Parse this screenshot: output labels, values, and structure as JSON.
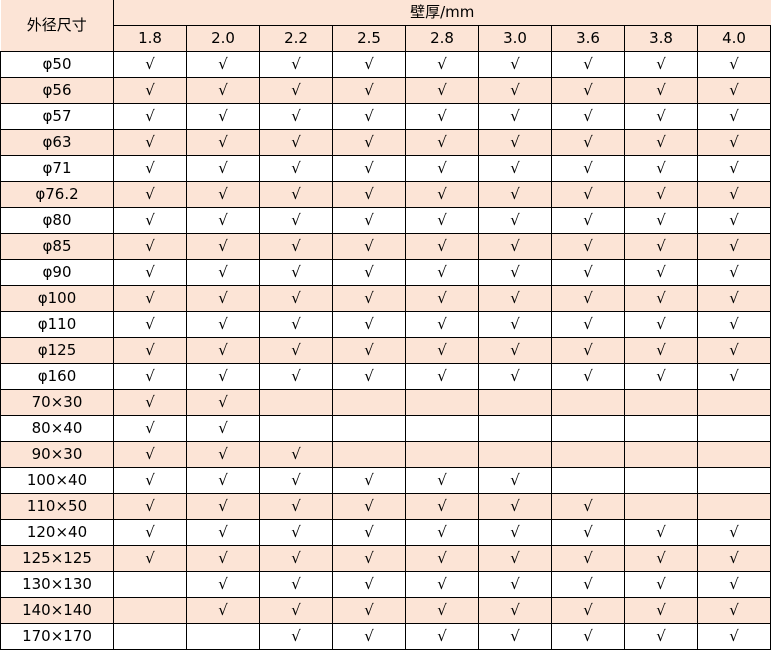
{
  "table": {
    "corner_header": "外径尺寸",
    "group_header": "壁厚/mm",
    "thickness_columns": [
      "1.8",
      "2.0",
      "2.2",
      "2.5",
      "2.8",
      "3.0",
      "3.6",
      "3.8",
      "4.0"
    ],
    "check_mark": "√",
    "row_color_alt": "#fce4d6",
    "rows": [
      {
        "size": "φ50",
        "checks": [
          1,
          1,
          1,
          1,
          1,
          1,
          1,
          1,
          1
        ]
      },
      {
        "size": "φ56",
        "checks": [
          1,
          1,
          1,
          1,
          1,
          1,
          1,
          1,
          1
        ]
      },
      {
        "size": "φ57",
        "checks": [
          1,
          1,
          1,
          1,
          1,
          1,
          1,
          1,
          1
        ]
      },
      {
        "size": "φ63",
        "checks": [
          1,
          1,
          1,
          1,
          1,
          1,
          1,
          1,
          1
        ]
      },
      {
        "size": "φ71",
        "checks": [
          1,
          1,
          1,
          1,
          1,
          1,
          1,
          1,
          1
        ]
      },
      {
        "size": "φ76.2",
        "checks": [
          1,
          1,
          1,
          1,
          1,
          1,
          1,
          1,
          1
        ]
      },
      {
        "size": "φ80",
        "checks": [
          1,
          1,
          1,
          1,
          1,
          1,
          1,
          1,
          1
        ]
      },
      {
        "size": "φ85",
        "checks": [
          1,
          1,
          1,
          1,
          1,
          1,
          1,
          1,
          1
        ]
      },
      {
        "size": "φ90",
        "checks": [
          1,
          1,
          1,
          1,
          1,
          1,
          1,
          1,
          1
        ]
      },
      {
        "size": "φ100",
        "checks": [
          1,
          1,
          1,
          1,
          1,
          1,
          1,
          1,
          1
        ]
      },
      {
        "size": "φ110",
        "checks": [
          1,
          1,
          1,
          1,
          1,
          1,
          1,
          1,
          1
        ]
      },
      {
        "size": "φ125",
        "checks": [
          1,
          1,
          1,
          1,
          1,
          1,
          1,
          1,
          1
        ]
      },
      {
        "size": "φ160",
        "checks": [
          1,
          1,
          1,
          1,
          1,
          1,
          1,
          1,
          1
        ]
      },
      {
        "size": "70×30",
        "checks": [
          1,
          1,
          0,
          0,
          0,
          0,
          0,
          0,
          0
        ]
      },
      {
        "size": "80×40",
        "checks": [
          1,
          1,
          0,
          0,
          0,
          0,
          0,
          0,
          0
        ]
      },
      {
        "size": "90×30",
        "checks": [
          1,
          1,
          1,
          0,
          0,
          0,
          0,
          0,
          0
        ]
      },
      {
        "size": "100×40",
        "checks": [
          1,
          1,
          1,
          1,
          1,
          1,
          0,
          0,
          0
        ]
      },
      {
        "size": "110×50",
        "checks": [
          1,
          1,
          1,
          1,
          1,
          1,
          1,
          0,
          0
        ]
      },
      {
        "size": "120×40",
        "checks": [
          1,
          1,
          1,
          1,
          1,
          1,
          1,
          1,
          1
        ]
      },
      {
        "size": "125×125",
        "checks": [
          1,
          1,
          1,
          1,
          1,
          1,
          1,
          1,
          1
        ]
      },
      {
        "size": "130×130",
        "checks": [
          0,
          1,
          1,
          1,
          1,
          1,
          1,
          1,
          1
        ]
      },
      {
        "size": "140×140",
        "checks": [
          0,
          1,
          1,
          1,
          1,
          1,
          1,
          1,
          1
        ]
      },
      {
        "size": "170×170",
        "checks": [
          0,
          0,
          1,
          1,
          1,
          1,
          1,
          1,
          1
        ]
      }
    ]
  }
}
